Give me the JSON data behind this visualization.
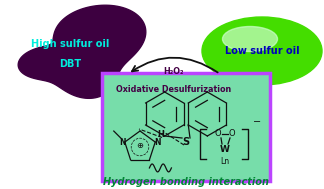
{
  "bg_color": "#ffffff",
  "left_blob_color": "#3d0040",
  "right_blob_color": "#44dd00",
  "right_blob_highlight": "#aaffaa",
  "left_text1": "High sulfur oil",
  "left_text2": "DBT",
  "left_text_color": "#00eedd",
  "right_text": "Low sulfur oil",
  "right_text_color": "#0000bb",
  "arrow_color": "#111111",
  "arrow_text1": "Oxidative Desulfurization",
  "arrow_text2": "H₂O₂",
  "arrow_text_color": "#440044",
  "box_bg": "#77ddaa",
  "box_border": "#bb44ff",
  "bottom_text": "Hydrogen bonding interaction",
  "bottom_text_color": "#008833",
  "mol_color": "#111111"
}
